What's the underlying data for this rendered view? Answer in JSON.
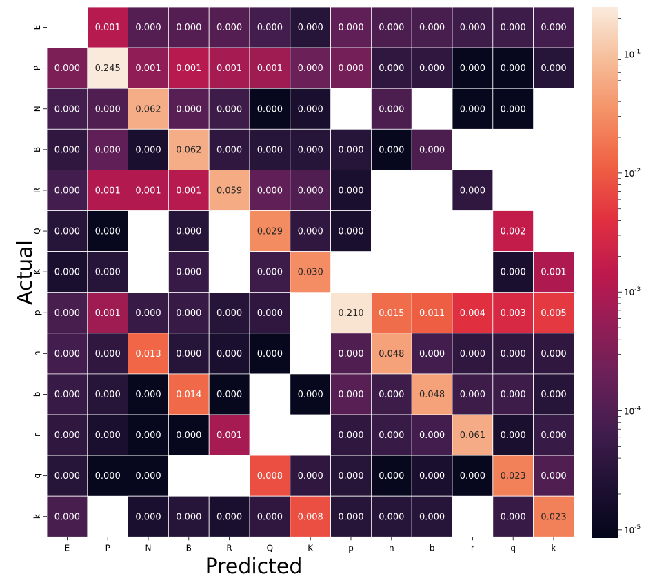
{
  "chart_data": {
    "type": "heatmap",
    "title": "",
    "xlabel": "Predicted",
    "ylabel": "Actual",
    "x_categories": [
      "E",
      "P",
      "N",
      "B",
      "R",
      "Q",
      "K",
      "p",
      "n",
      "b",
      "r",
      "q",
      "k"
    ],
    "y_categories": [
      "E",
      "P",
      "N",
      "B",
      "R",
      "Q",
      "K",
      "p",
      "n",
      "b",
      "r",
      "q",
      "k"
    ],
    "value_format": "3 decimals",
    "colormap": "rocket",
    "color_scale": "log",
    "color_range": [
      8.5e-06,
      0.25
    ],
    "grid_line_color": "#ffffff",
    "colorbar": {
      "placement": "right",
      "major_ticks": [
        {
          "value": 0.1,
          "label": "10^-1"
        },
        {
          "value": 0.01,
          "label": "10^-2"
        },
        {
          "value": 0.001,
          "label": "10^-3"
        },
        {
          "value": 0.0001,
          "label": "10^-4"
        },
        {
          "value": 1e-05,
          "label": "10^-5"
        }
      ]
    },
    "values": [
      [
        null,
        0.0012,
        0.00011,
        0.00011,
        0.00011,
        7e-05,
        3e-05,
        0.00015,
        9e-05,
        8e-05,
        6e-05,
        6e-05,
        7e-05
      ],
      [
        0.0003,
        0.245,
        0.0005,
        0.0012,
        0.0008,
        0.0007,
        0.0002,
        0.00025,
        4e-05,
        4e-05,
        1e-05,
        1e-05,
        3e-05
      ],
      [
        7e-05,
        0.0001,
        0.062,
        0.00012,
        6e-05,
        1e-05,
        2e-05,
        null,
        9e-05,
        null,
        1e-05,
        1e-05,
        null
      ],
      [
        4e-05,
        0.00015,
        2e-05,
        0.062,
        4e-05,
        3e-05,
        3e-05,
        3e-05,
        1e-05,
        9e-05,
        null,
        null,
        null
      ],
      [
        7e-05,
        0.0011,
        0.0011,
        0.0012,
        0.059,
        0.00015,
        0.0001,
        2e-05,
        null,
        null,
        4e-05,
        null,
        null
      ],
      [
        3e-05,
        1e-05,
        null,
        3e-05,
        null,
        0.029,
        4e-05,
        2e-05,
        null,
        null,
        null,
        0.0017,
        null
      ],
      [
        2e-05,
        3e-05,
        null,
        5e-05,
        null,
        6e-05,
        0.03,
        null,
        null,
        null,
        null,
        2e-05,
        0.001
      ],
      [
        8e-05,
        0.0007,
        5e-05,
        5e-05,
        3e-05,
        4e-05,
        null,
        0.21,
        0.015,
        0.011,
        0.004,
        0.003,
        0.005
      ],
      [
        7e-05,
        4e-05,
        0.013,
        3e-05,
        2e-05,
        1e-05,
        null,
        0.0001,
        0.048,
        7e-05,
        4e-05,
        4e-05,
        4e-05
      ],
      [
        5e-05,
        3e-05,
        1e-05,
        0.014,
        1e-05,
        null,
        1e-05,
        0.00012,
        6e-05,
        0.048,
        6e-05,
        6e-05,
        3e-05
      ],
      [
        4e-05,
        2e-05,
        1e-05,
        1e-05,
        0.0008,
        null,
        null,
        4e-05,
        5e-05,
        7e-05,
        0.061,
        2e-05,
        5e-05
      ],
      [
        3e-05,
        1e-05,
        1e-05,
        null,
        null,
        0.008,
        4e-05,
        3e-05,
        1e-05,
        2e-05,
        1e-05,
        0.023,
        0.0001
      ],
      [
        8e-05,
        null,
        2e-05,
        3e-05,
        2e-05,
        4e-05,
        0.008,
        3e-05,
        3e-05,
        3e-05,
        null,
        5e-05,
        0.023
      ]
    ]
  }
}
